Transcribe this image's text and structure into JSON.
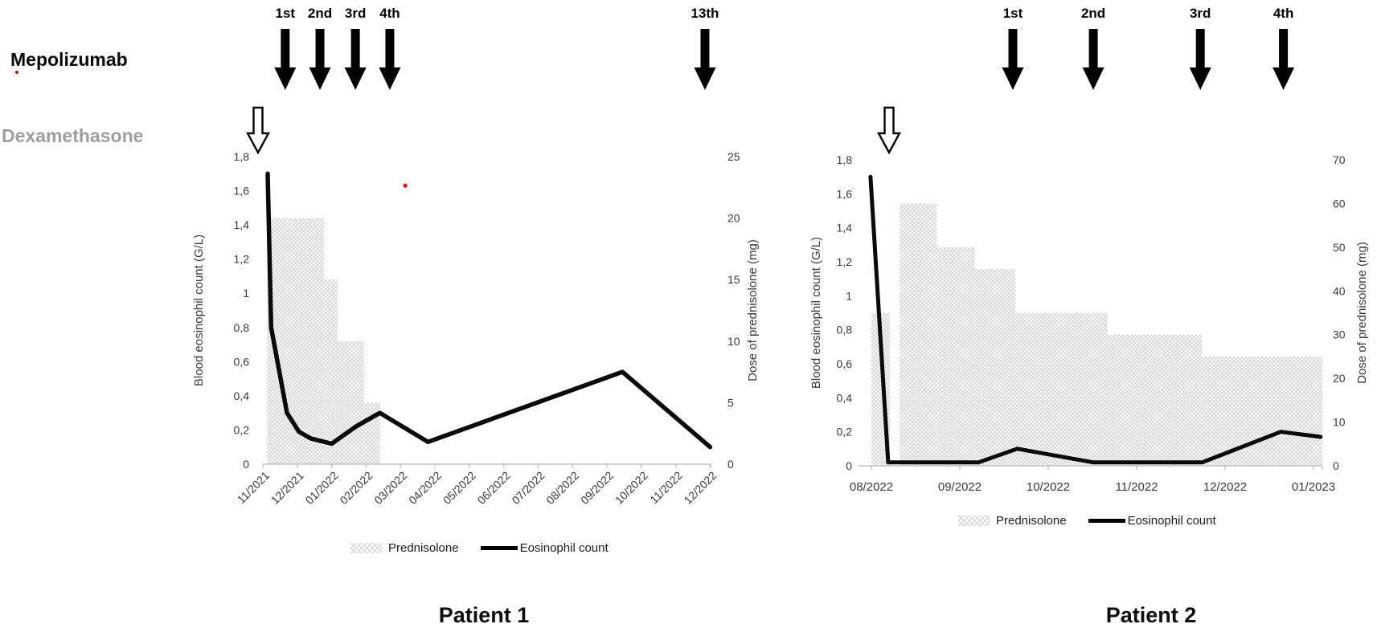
{
  "header": {
    "mepolizumab_label": "Mepolizumab",
    "dexamethasone_label": "Dexamethasone"
  },
  "colors": {
    "line_black": "#0a0a0a",
    "axis_gray": "#c2c2c2",
    "tick_text": "#3a3a3a",
    "pattern_gray": "#d2d2d2",
    "dexamethasone_gray": "#9e9e9e",
    "annotation_red": "#ff0000"
  },
  "chart_data": [
    {
      "id": "patient1",
      "type": "line+stepped-area",
      "caption": "Patient 1",
      "x_axis": {
        "labels": [
          "11/2021",
          "12/2021",
          "01/2022",
          "02/2022",
          "03/2022",
          "04/2022",
          "05/2022",
          "06/2022",
          "07/2022",
          "08/2022",
          "09/2022",
          "10/2022",
          "11/2022",
          "12/2022"
        ],
        "rotated": true
      },
      "left_axis": {
        "title": "Blood eosinophil count (G/L)",
        "min": 0,
        "max": 1.8,
        "step": 0.2,
        "tick_labels": [
          "0",
          "0,2",
          "0,4",
          "0,6",
          "0,8",
          "1",
          "1,2",
          "1,4",
          "1,6",
          "1,8"
        ]
      },
      "right_axis": {
        "title": "Dose of prednisolone (mg)",
        "min": 0,
        "max": 25,
        "step": 5,
        "tick_labels": [
          "0",
          "5",
          "10",
          "15",
          "20",
          "25"
        ]
      },
      "legend": {
        "prednisolone": "Prednisolone",
        "eosinophil": "Eosinophil count"
      },
      "mepolizumab_injections": [
        {
          "label": "1st",
          "month": 0.65
        },
        {
          "label": "2nd",
          "month": 1.66
        },
        {
          "label": "3rd",
          "month": 2.69
        },
        {
          "label": "4th",
          "month": 3.69
        },
        {
          "label": "13th",
          "month": 12.85
        }
      ],
      "dexamethasone_injection": {
        "month": -0.14
      },
      "series": [
        {
          "name": "Prednisolone",
          "kind": "stepped_area",
          "axis": "right",
          "unit": "mg",
          "steps": [
            {
              "from": 0.12,
              "to": 1.78,
              "mg": 20
            },
            {
              "from": 1.78,
              "to": 2.17,
              "mg": 15
            },
            {
              "from": 2.17,
              "to": 2.94,
              "mg": 10
            },
            {
              "from": 2.94,
              "to": 3.41,
              "mg": 5
            }
          ]
        },
        {
          "name": "Eosinophil count",
          "kind": "line",
          "axis": "left",
          "unit": "G/L",
          "points": [
            [
              0.14,
              1.7
            ],
            [
              0.24,
              0.8
            ],
            [
              0.7,
              0.3
            ],
            [
              1.05,
              0.19
            ],
            [
              1.4,
              0.15
            ],
            [
              2.0,
              0.12
            ],
            [
              2.7,
              0.22
            ],
            [
              3.4,
              0.3
            ],
            [
              4.8,
              0.13
            ],
            [
              10.45,
              0.54
            ],
            [
              13.0,
              0.1
            ]
          ]
        }
      ],
      "annotations": [
        {
          "type": "dot",
          "color": "#ff0000",
          "month": 4.14,
          "value": 1.63
        }
      ]
    },
    {
      "id": "patient2",
      "type": "line+stepped-area",
      "caption": "Patient 2",
      "x_axis": {
        "labels": [
          "08/2022",
          "09/2022",
          "10/2022",
          "11/2022",
          "12/2022",
          "01/2023"
        ],
        "rotated": false
      },
      "left_axis": {
        "title": "Blood eosinophil count (G/L)",
        "min": 0,
        "max": 1.8,
        "step": 0.2,
        "tick_labels": [
          "0",
          "0,2",
          "0,4",
          "0,6",
          "0,8",
          "1",
          "1,2",
          "1,4",
          "1,6",
          "1,8"
        ]
      },
      "right_axis": {
        "title": "Dose of prednisolone (mg)",
        "min": 0,
        "max": 70,
        "step": 10,
        "tick_labels": [
          "0",
          "10",
          "20",
          "30",
          "40",
          "50",
          "60",
          "70"
        ]
      },
      "legend": {
        "prednisolone": "Prednisolone",
        "eosinophil": "Eosinophil count"
      },
      "mepolizumab_injections": [
        {
          "label": "1st",
          "month": 1.6
        },
        {
          "label": "2nd",
          "month": 2.51
        },
        {
          "label": "3rd",
          "month": 3.72
        },
        {
          "label": "4th",
          "month": 4.66
        }
      ],
      "dexamethasone_injection": {
        "month": 0.2
      },
      "series": [
        {
          "name": "Prednisolone",
          "kind": "stepped_area",
          "axis": "right",
          "unit": "mg",
          "steps": [
            {
              "from": 0.0,
              "to": 0.21,
              "mg": 35
            },
            {
              "from": 0.32,
              "to": 0.74,
              "mg": 60
            },
            {
              "from": 0.74,
              "to": 1.17,
              "mg": 50
            },
            {
              "from": 1.17,
              "to": 1.63,
              "mg": 45
            },
            {
              "from": 1.63,
              "to": 2.67,
              "mg": 35
            },
            {
              "from": 2.67,
              "to": 3.74,
              "mg": 30
            },
            {
              "from": 3.74,
              "to": 5.1,
              "mg": 25
            }
          ]
        },
        {
          "name": "Eosinophil count",
          "kind": "line",
          "axis": "left",
          "unit": "G/L",
          "points": [
            [
              -0.01,
              1.7
            ],
            [
              0.19,
              0.02
            ],
            [
              1.21,
              0.02
            ],
            [
              1.65,
              0.1
            ],
            [
              2.51,
              0.02
            ],
            [
              3.74,
              0.02
            ],
            [
              4.63,
              0.2
            ],
            [
              5.08,
              0.17
            ]
          ]
        }
      ],
      "annotations": []
    }
  ]
}
